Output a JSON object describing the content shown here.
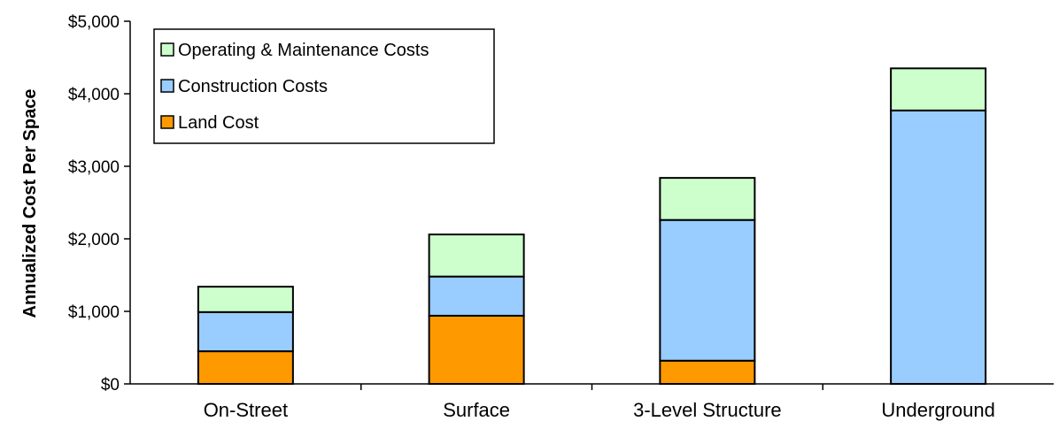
{
  "chart_data": {
    "type": "bar",
    "stacked": true,
    "categories": [
      "On-Street",
      "Surface",
      "3-Level Structure",
      "Underground"
    ],
    "series": [
      {
        "name": "Land Cost",
        "values": [
          450,
          940,
          320,
          0
        ],
        "color": "#ff9900"
      },
      {
        "name": "Construction Costs",
        "values": [
          540,
          540,
          1940,
          3770
        ],
        "color": "#99ccff"
      },
      {
        "name": "Operating & Maintenance Costs",
        "values": [
          350,
          580,
          580,
          580
        ],
        "color": "#ccffcc"
      }
    ],
    "ylabel": "Annualized Cost Per Space",
    "xlabel": "",
    "ylim": [
      0,
      5000
    ],
    "yticks": [
      0,
      1000,
      2000,
      3000,
      4000,
      5000
    ],
    "ytick_labels": [
      "$0",
      "$1,000",
      "$2,000",
      "$3,000",
      "$4,000",
      "$5,000"
    ],
    "grid": false,
    "legend_position": "top-left",
    "legend_order": [
      "Operating & Maintenance Costs",
      "Construction Costs",
      "Land Cost"
    ]
  }
}
